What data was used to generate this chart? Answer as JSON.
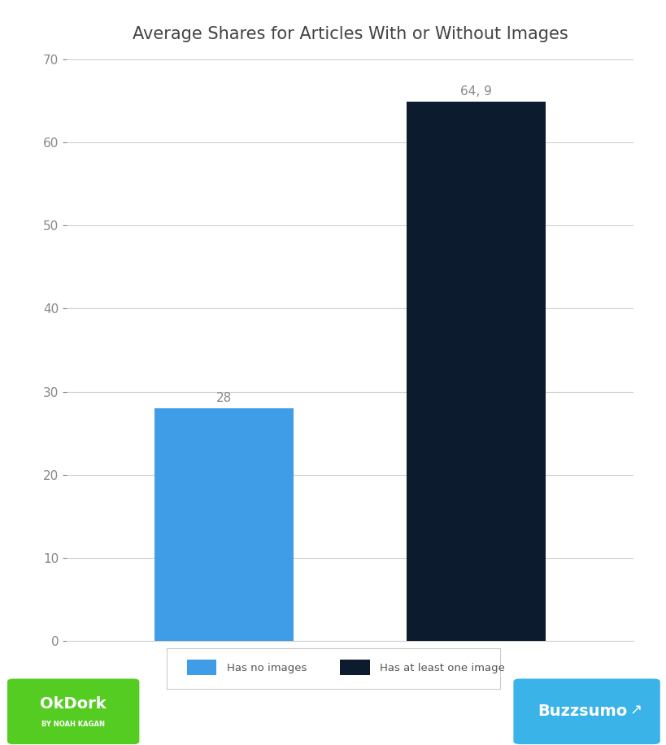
{
  "title": "Average Shares for Articles With or Without Images",
  "categories": [
    "Has no images",
    "Has at least one image"
  ],
  "values": [
    28,
    64.9
  ],
  "bar_colors": [
    "#3e9de6",
    "#0d1b2e"
  ],
  "bar_labels": [
    "28",
    "64, 9"
  ],
  "ylim": [
    0,
    70
  ],
  "yticks": [
    0,
    10,
    20,
    30,
    40,
    50,
    60,
    70
  ],
  "background_color": "#ffffff",
  "grid_color": "#d0d0d0",
  "title_fontsize": 15,
  "tick_fontsize": 11,
  "label_fontsize": 11,
  "legend_labels": [
    "Has no images",
    "Has at least one image"
  ],
  "legend_colors": [
    "#3e9de6",
    "#0d1b2e"
  ],
  "okdork_bg": "#55cc22",
  "buzzsumo_bg": "#3ab4e8"
}
